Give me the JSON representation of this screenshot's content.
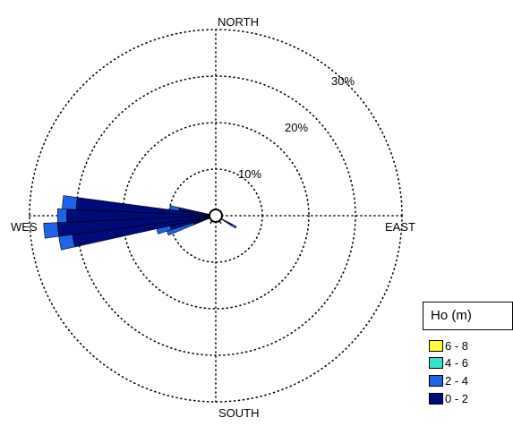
{
  "chart_data": {
    "type": "wind_rose",
    "directions": [
      "NORTH",
      "EAST",
      "SOUTH",
      "WES"
    ],
    "ring_labels": [
      "10%",
      "20%",
      "30%"
    ],
    "rings": [
      10,
      20,
      30,
      40
    ],
    "legend": {
      "title": "Ho (m)",
      "classes": [
        {
          "label": "6 - 8",
          "color": "#ffff33"
        },
        {
          "label": "4 - 6",
          "color": "#33e6c8"
        },
        {
          "label": "2 - 4",
          "color": "#1e64e8"
        },
        {
          "label": "0 - 2",
          "color": "#000a78"
        }
      ]
    },
    "sectors": [
      {
        "bearing": 250,
        "bins": [
          {
            "cls": "0 - 2",
            "to": 5
          },
          {
            "cls": "2 - 4",
            "to": 11
          }
        ]
      },
      {
        "bearing": 255,
        "bins": [
          {
            "cls": "0 - 2",
            "to": 10
          },
          {
            "cls": "2 - 4",
            "to": 13
          }
        ]
      },
      {
        "bearing": 260,
        "bins": [
          {
            "cls": "0 - 2",
            "to": 31
          },
          {
            "cls": "2 - 4",
            "to": 34
          }
        ]
      },
      {
        "bearing": 265,
        "bins": [
          {
            "cls": "0 - 2",
            "to": 34
          },
          {
            "cls": "2 - 4",
            "to": 37
          }
        ]
      },
      {
        "bearing": 270,
        "bins": [
          {
            "cls": "0 - 2",
            "to": 32
          },
          {
            "cls": "2 - 4",
            "to": 34
          }
        ]
      },
      {
        "bearing": 275,
        "bins": [
          {
            "cls": "0 - 2",
            "to": 30
          },
          {
            "cls": "2 - 4",
            "to": 33
          }
        ]
      },
      {
        "bearing": 280,
        "bins": [
          {
            "cls": "0 - 2",
            "to": 8
          },
          {
            "cls": "2 - 4",
            "to": 10
          }
        ]
      },
      {
        "bearing": 120,
        "bins": [
          {
            "cls": "0 - 2",
            "to": 4
          },
          {
            "cls": "2 - 4",
            "to": 5
          }
        ]
      },
      {
        "bearing": 145,
        "bins": [
          {
            "cls": "0 - 2",
            "to": 2
          }
        ]
      },
      {
        "bearing": 215,
        "bins": [
          {
            "cls": "0 - 2",
            "to": 2
          }
        ]
      }
    ]
  }
}
